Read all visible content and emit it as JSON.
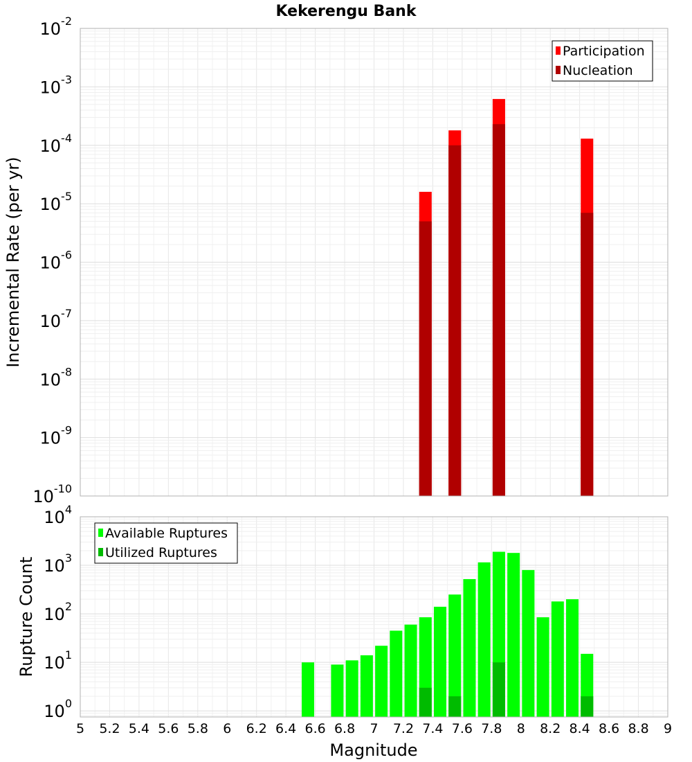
{
  "chart_data": [
    {
      "type": "bar",
      "title": "Kekerengu Bank",
      "ylabel": "Incremental Rate (per yr)",
      "xlabel": "",
      "xlim": [
        5,
        9
      ],
      "ylim": [
        1e-10,
        0.01
      ],
      "yscale": "log",
      "grid": true,
      "legend_position": "top-right",
      "y_tick_labels": [
        {
          "base": "10",
          "exp": "-10",
          "value": 1e-10
        },
        {
          "base": "10",
          "exp": "-9",
          "value": 1e-09
        },
        {
          "base": "10",
          "exp": "-8",
          "value": 1e-08
        },
        {
          "base": "10",
          "exp": "-7",
          "value": 1e-07
        },
        {
          "base": "10",
          "exp": "-6",
          "value": 1e-06
        },
        {
          "base": "10",
          "exp": "-5",
          "value": 1e-05
        },
        {
          "base": "10",
          "exp": "-4",
          "value": 0.0001
        },
        {
          "base": "10",
          "exp": "-3",
          "value": 0.001
        },
        {
          "base": "10",
          "exp": "-2",
          "value": 0.01
        }
      ],
      "bar_width": 0.1,
      "series": [
        {
          "name": "Participation",
          "color": "#ff0000",
          "x": [
            7.35,
            7.55,
            7.85,
            8.45
          ],
          "values": [
            1.6e-05,
            0.00018,
            0.00062,
            0.00013
          ]
        },
        {
          "name": "Nucleation",
          "color": "#b00000",
          "x": [
            7.35,
            7.55,
            7.85,
            8.45
          ],
          "values": [
            5e-06,
            0.0001,
            0.00023,
            7e-06
          ]
        }
      ]
    },
    {
      "type": "bar",
      "ylabel": "Rupture Count",
      "xlabel": "Magnitude",
      "xlim": [
        5,
        9
      ],
      "ylim": [
        0.75,
        10000
      ],
      "yscale": "log",
      "grid": true,
      "legend_position": "top-left",
      "y_tick_labels": [
        {
          "base": "10",
          "exp": "0",
          "value": 1
        },
        {
          "base": "10",
          "exp": "1",
          "value": 10
        },
        {
          "base": "10",
          "exp": "2",
          "value": 100
        },
        {
          "base": "10",
          "exp": "3",
          "value": 1000
        },
        {
          "base": "10",
          "exp": "4",
          "value": 10000
        }
      ],
      "x_tick_labels": [
        "5",
        "5.2",
        "5.4",
        "5.6",
        "5.8",
        "6",
        "6.2",
        "6.4",
        "6.6",
        "6.8",
        "7",
        "7.2",
        "7.4",
        "7.6",
        "7.8",
        "8",
        "8.2",
        "8.4",
        "8.6",
        "8.8",
        "9"
      ],
      "x_tick_values": [
        5,
        5.2,
        5.4,
        5.6,
        5.8,
        6,
        6.2,
        6.4,
        6.6,
        6.8,
        7,
        7.2,
        7.4,
        7.6,
        7.8,
        8,
        8.2,
        8.4,
        8.6,
        8.8,
        9
      ],
      "bar_width": 0.1,
      "series": [
        {
          "name": "Available Ruptures",
          "color": "#00ff00",
          "x": [
            6.55,
            6.75,
            6.85,
            6.95,
            7.05,
            7.15,
            7.25,
            7.35,
            7.45,
            7.55,
            7.65,
            7.75,
            7.85,
            7.95,
            8.05,
            8.15,
            8.25,
            8.35,
            8.45
          ],
          "values": [
            10,
            9,
            11,
            14,
            22,
            45,
            60,
            85,
            140,
            250,
            520,
            1150,
            1900,
            1800,
            800,
            85,
            180,
            200,
            15
          ]
        },
        {
          "name": "Utilized Ruptures",
          "color": "#00bb00",
          "x": [
            7.35,
            7.55,
            7.85,
            8.45
          ],
          "values": [
            3,
            2,
            10,
            2
          ]
        }
      ]
    }
  ]
}
